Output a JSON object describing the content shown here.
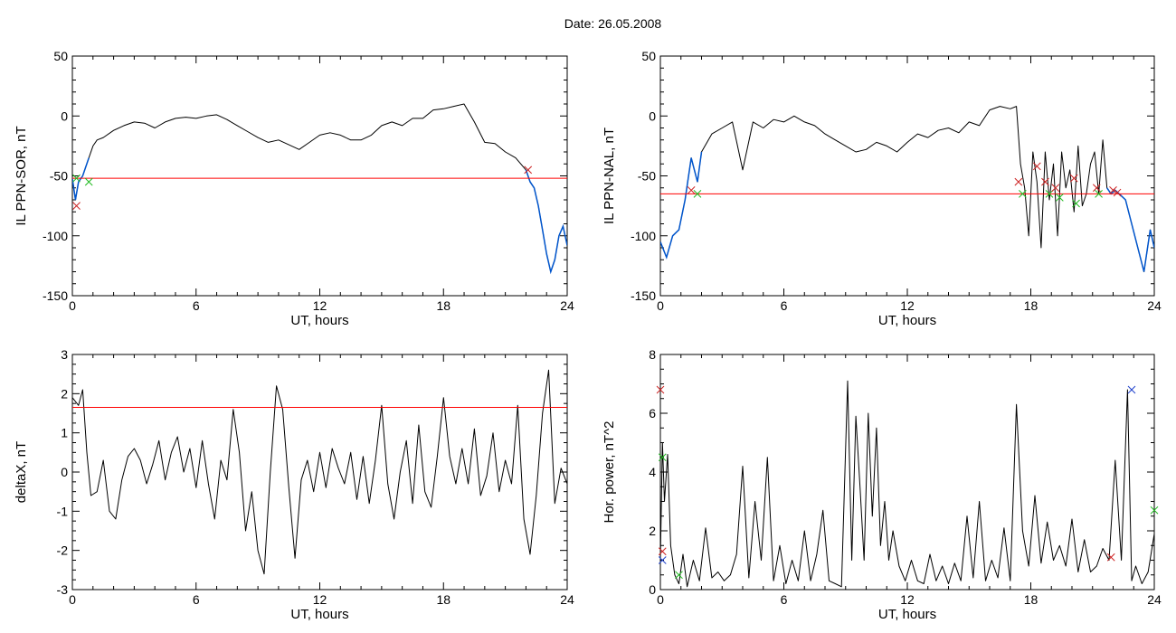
{
  "title": "Date:  26.05.2008",
  "colors": {
    "threshold": "#ff0000",
    "highlight": "#0055cc",
    "cross_red": "#cc2222",
    "cross_green": "#22bb22",
    "cross_blue": "#2244cc"
  },
  "chart_data": [
    {
      "id": "ppn-sor",
      "type": "line",
      "title": "",
      "xlabel": "UT, hours",
      "ylabel": "IL PPN-SOR, nT",
      "xlim": [
        0,
        24
      ],
      "ylim": [
        -150,
        50
      ],
      "xticks": [
        0,
        6,
        12,
        18,
        24
      ],
      "yticks": [
        -150,
        -100,
        -50,
        0,
        50
      ],
      "xminor": 1,
      "yminor": 10,
      "threshold": -52,
      "series": [
        {
          "x": [
            0,
            0.15,
            0.3,
            0.5,
            0.8,
            1.0,
            1.2,
            1.5,
            2.0,
            2.5,
            3.0,
            3.5,
            4.0,
            4.5,
            5.0,
            5.5,
            6.0,
            6.5,
            7.0,
            7.5,
            8.0,
            8.5,
            9.0,
            9.5,
            10.0,
            10.5,
            11.0,
            11.5,
            12.0,
            12.5,
            13.0,
            13.5,
            14.0,
            14.5,
            15.0,
            15.5,
            16.0,
            16.5,
            17.0,
            17.5,
            18.0,
            18.5,
            19.0,
            19.5,
            20.0,
            20.5,
            21.0,
            21.5,
            22.0,
            22.2,
            22.4,
            22.6,
            22.8,
            23.0,
            23.2,
            23.4,
            23.6,
            23.8,
            24.0
          ],
          "y": [
            -52,
            -70,
            -55,
            -50,
            -35,
            -25,
            -20,
            -18,
            -12,
            -8,
            -5,
            -6,
            -10,
            -5,
            -2,
            -1,
            -2,
            0,
            1,
            -3,
            -8,
            -13,
            -18,
            -22,
            -20,
            -24,
            -28,
            -22,
            -16,
            -14,
            -16,
            -20,
            -20,
            -16,
            -8,
            -5,
            -8,
            -2,
            -2,
            5,
            6,
            8,
            10,
            -5,
            -22,
            -23,
            -30,
            -35,
            -45,
            -55,
            -60,
            -75,
            -95,
            -115,
            -130,
            -120,
            -100,
            -92,
            -108
          ]
        }
      ],
      "highlight_from": 21.8,
      "highlight_to_start": 0.9,
      "crosses": [
        {
          "x": 0.2,
          "y": -52,
          "color": "green"
        },
        {
          "x": 0.2,
          "y": -75,
          "color": "red"
        },
        {
          "x": 0.8,
          "y": -55,
          "color": "green"
        },
        {
          "x": 22.1,
          "y": -45,
          "color": "red"
        }
      ]
    },
    {
      "id": "ppn-nal",
      "type": "line",
      "title": "",
      "xlabel": "UT, hours",
      "ylabel": "IL PPN-NAL, nT",
      "xlim": [
        0,
        24
      ],
      "ylim": [
        -150,
        50
      ],
      "xticks": [
        0,
        6,
        12,
        18,
        24
      ],
      "yticks": [
        -150,
        -100,
        -50,
        0,
        50
      ],
      "xminor": 1,
      "yminor": 10,
      "threshold": -65,
      "series": [
        {
          "x": [
            0,
            0.3,
            0.6,
            0.9,
            1.2,
            1.5,
            1.8,
            2.0,
            2.5,
            3.0,
            3.5,
            4.0,
            4.5,
            5.0,
            5.5,
            6.0,
            6.5,
            7.0,
            7.5,
            8.0,
            8.5,
            9.0,
            9.5,
            10.0,
            10.5,
            11.0,
            11.5,
            12.0,
            12.5,
            13.0,
            13.5,
            14.0,
            14.5,
            15.0,
            15.5,
            16.0,
            16.5,
            17.0,
            17.3,
            17.5,
            17.7,
            17.9,
            18.1,
            18.3,
            18.5,
            18.7,
            18.9,
            19.1,
            19.3,
            19.5,
            19.7,
            19.9,
            20.1,
            20.3,
            20.5,
            20.7,
            20.9,
            21.1,
            21.3,
            21.5,
            21.7,
            21.9,
            22.1,
            22.3,
            22.6,
            22.9,
            23.2,
            23.5,
            23.8,
            24.0
          ],
          "y": [
            -105,
            -118,
            -100,
            -95,
            -70,
            -35,
            -55,
            -30,
            -15,
            -10,
            -5,
            -45,
            -5,
            -10,
            -3,
            -5,
            0,
            -5,
            -8,
            -15,
            -20,
            -25,
            -30,
            -28,
            -22,
            -25,
            -30,
            -22,
            -15,
            -18,
            -12,
            -10,
            -14,
            -5,
            -8,
            5,
            8,
            6,
            8,
            -40,
            -60,
            -100,
            -30,
            -55,
            -110,
            -30,
            -70,
            -40,
            -100,
            -30,
            -60,
            -45,
            -80,
            -25,
            -75,
            -65,
            -40,
            -30,
            -65,
            -20,
            -60,
            -65,
            -62,
            -65,
            -70,
            -90,
            -110,
            -130,
            -95,
            -110
          ]
        }
      ],
      "highlight_from": 21.6,
      "highlight_to_start": 2.0,
      "crosses": [
        {
          "x": 1.5,
          "y": -62,
          "color": "red"
        },
        {
          "x": 1.8,
          "y": -65,
          "color": "green"
        },
        {
          "x": 17.4,
          "y": -55,
          "color": "red"
        },
        {
          "x": 17.6,
          "y": -65,
          "color": "green"
        },
        {
          "x": 18.3,
          "y": -42,
          "color": "red"
        },
        {
          "x": 18.7,
          "y": -55,
          "color": "red"
        },
        {
          "x": 18.9,
          "y": -65,
          "color": "green"
        },
        {
          "x": 19.2,
          "y": -60,
          "color": "red"
        },
        {
          "x": 19.4,
          "y": -68,
          "color": "green"
        },
        {
          "x": 20.1,
          "y": -52,
          "color": "red"
        },
        {
          "x": 20.2,
          "y": -73,
          "color": "green"
        },
        {
          "x": 21.2,
          "y": -60,
          "color": "red"
        },
        {
          "x": 21.3,
          "y": -65,
          "color": "green"
        },
        {
          "x": 22.0,
          "y": -62,
          "color": "red"
        },
        {
          "x": 22.2,
          "y": -64,
          "color": "red"
        }
      ]
    },
    {
      "id": "deltax",
      "type": "line",
      "title": "",
      "xlabel": "UT, hours",
      "ylabel": "deltaX, nT",
      "xlim": [
        0,
        24
      ],
      "ylim": [
        -3,
        3
      ],
      "xticks": [
        0,
        6,
        12,
        18,
        24
      ],
      "yticks": [
        -3,
        -2,
        -1,
        0,
        1,
        2,
        3
      ],
      "xminor": 1,
      "yminor": 0.25,
      "threshold": 1.65,
      "series": [
        {
          "x": [
            0,
            0.3,
            0.5,
            0.7,
            0.9,
            1.2,
            1.5,
            1.8,
            2.1,
            2.4,
            2.7,
            3.0,
            3.3,
            3.6,
            3.9,
            4.2,
            4.5,
            4.8,
            5.1,
            5.4,
            5.7,
            6.0,
            6.3,
            6.6,
            6.9,
            7.2,
            7.5,
            7.8,
            8.1,
            8.4,
            8.7,
            9.0,
            9.3,
            9.6,
            9.9,
            10.2,
            10.5,
            10.8,
            11.1,
            11.4,
            11.7,
            12.0,
            12.3,
            12.6,
            12.9,
            13.2,
            13.5,
            13.8,
            14.1,
            14.4,
            14.7,
            15.0,
            15.3,
            15.6,
            15.9,
            16.2,
            16.5,
            16.8,
            17.1,
            17.4,
            17.7,
            18.0,
            18.3,
            18.6,
            18.9,
            19.2,
            19.5,
            19.8,
            20.1,
            20.4,
            20.7,
            21.0,
            21.3,
            21.6,
            21.9,
            22.2,
            22.5,
            22.8,
            23.1,
            23.4,
            23.7,
            24.0
          ],
          "y": [
            1.9,
            1.7,
            2.1,
            0.5,
            -0.6,
            -0.5,
            0.3,
            -1.0,
            -1.2,
            -0.2,
            0.4,
            0.6,
            0.3,
            -0.3,
            0.2,
            0.8,
            -0.2,
            0.5,
            0.9,
            0.0,
            0.6,
            -0.4,
            0.8,
            -0.3,
            -1.2,
            0.3,
            -0.2,
            1.6,
            0.5,
            -1.5,
            -0.5,
            -2.0,
            -2.6,
            0.0,
            2.2,
            1.6,
            -0.4,
            -2.2,
            -0.2,
            0.3,
            -0.5,
            0.5,
            -0.4,
            0.6,
            0.1,
            -0.3,
            0.5,
            -0.7,
            0.4,
            -0.8,
            0.3,
            1.7,
            -0.3,
            -1.2,
            0.0,
            0.8,
            -0.8,
            1.2,
            -0.5,
            -0.9,
            0.4,
            1.9,
            0.4,
            -0.3,
            0.6,
            -0.3,
            1.1,
            -0.6,
            -0.1,
            1.0,
            -0.5,
            0.3,
            -0.3,
            1.7,
            -1.2,
            -2.1,
            -0.6,
            1.5,
            2.6,
            -0.8,
            0.1,
            -0.3
          ]
        }
      ],
      "highlight_from": null,
      "highlight_to_start": null,
      "crosses": []
    },
    {
      "id": "hor-power",
      "type": "line",
      "title": "",
      "xlabel": "UT, hours",
      "ylabel": "Hor. power, nT^2",
      "xlim": [
        0,
        24
      ],
      "ylim": [
        0,
        8
      ],
      "xticks": [
        0,
        6,
        12,
        18,
        24
      ],
      "yticks": [
        0,
        2,
        4,
        6,
        8
      ],
      "xminor": 1,
      "yminor": 0.5,
      "threshold": null,
      "series": [
        {
          "x": [
            0,
            0.1,
            0.2,
            0.35,
            0.5,
            0.7,
            0.9,
            1.1,
            1.3,
            1.6,
            1.9,
            2.2,
            2.5,
            2.8,
            3.1,
            3.4,
            3.7,
            4.0,
            4.3,
            4.6,
            4.9,
            5.2,
            5.5,
            5.8,
            6.1,
            6.4,
            6.7,
            7.0,
            7.3,
            7.6,
            7.9,
            8.2,
            8.5,
            8.8,
            9.1,
            9.3,
            9.5,
            9.7,
            9.9,
            10.1,
            10.3,
            10.5,
            10.7,
            10.9,
            11.1,
            11.3,
            11.6,
            11.9,
            12.2,
            12.5,
            12.8,
            13.1,
            13.4,
            13.7,
            14.0,
            14.3,
            14.6,
            14.9,
            15.2,
            15.5,
            15.8,
            16.1,
            16.4,
            16.7,
            17.0,
            17.3,
            17.6,
            17.9,
            18.2,
            18.5,
            18.8,
            19.1,
            19.4,
            19.7,
            20.0,
            20.3,
            20.6,
            20.9,
            21.2,
            21.5,
            21.8,
            22.1,
            22.4,
            22.7,
            22.9,
            23.1,
            23.4,
            23.7,
            24.0
          ],
          "y": [
            1.0,
            5.0,
            3.0,
            4.6,
            1.5,
            0.5,
            0.2,
            1.2,
            0.1,
            1.0,
            0.3,
            2.1,
            0.4,
            0.6,
            0.3,
            0.5,
            1.2,
            4.2,
            0.4,
            3.0,
            1.0,
            4.5,
            0.3,
            1.5,
            0.2,
            1.0,
            0.3,
            2.0,
            0.3,
            1.2,
            2.7,
            0.3,
            0.2,
            0.1,
            7.1,
            1.0,
            5.9,
            3.5,
            1.0,
            6.0,
            2.5,
            5.5,
            1.5,
            3.0,
            1.0,
            2.0,
            0.8,
            0.3,
            1.0,
            0.3,
            0.2,
            1.2,
            0.3,
            0.8,
            0.2,
            0.9,
            0.3,
            2.5,
            0.4,
            3.0,
            0.3,
            1.0,
            0.4,
            2.1,
            0.3,
            6.3,
            2.0,
            0.8,
            3.2,
            0.9,
            2.3,
            1.0,
            1.5,
            0.8,
            2.4,
            0.6,
            1.7,
            0.6,
            0.8,
            1.4,
            1.0,
            4.4,
            1.0,
            6.8,
            0.3,
            0.8,
            0.2,
            0.6,
            1.9
          ]
        }
      ],
      "highlight_from": null,
      "highlight_to_start": null,
      "crosses": [
        {
          "x": 0.0,
          "y": 6.8,
          "color": "red"
        },
        {
          "x": 0.1,
          "y": 4.5,
          "color": "green"
        },
        {
          "x": 0.1,
          "y": 1.3,
          "color": "red"
        },
        {
          "x": 0.1,
          "y": 1.0,
          "color": "blue"
        },
        {
          "x": 0.9,
          "y": 0.5,
          "color": "green"
        },
        {
          "x": 21.9,
          "y": 1.1,
          "color": "red"
        },
        {
          "x": 22.9,
          "y": 6.8,
          "color": "blue"
        },
        {
          "x": 24.0,
          "y": 2.7,
          "color": "green"
        }
      ]
    }
  ]
}
